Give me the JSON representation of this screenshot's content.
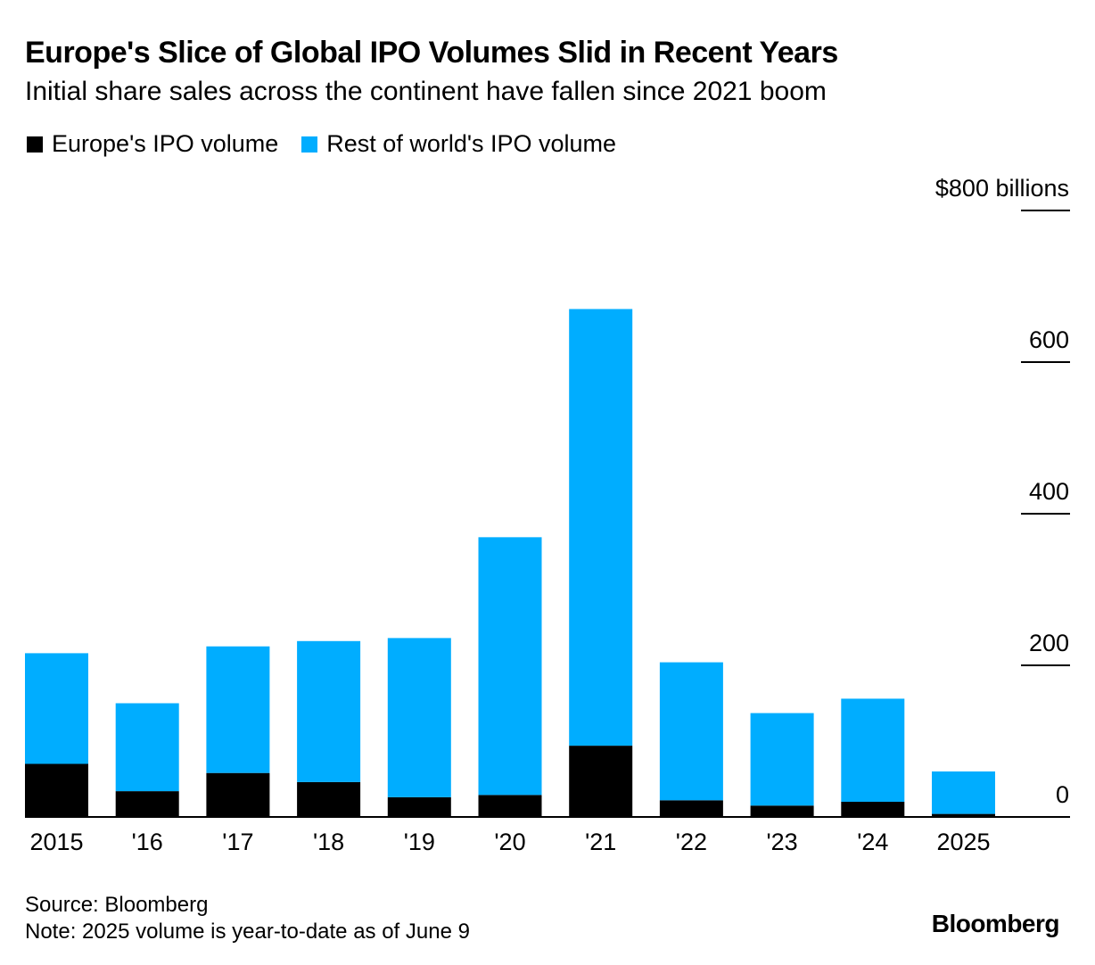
{
  "title": "Europe's Slice of Global IPO Volumes Slid in Recent Years",
  "subtitle": "Initial share sales across the continent have fallen since 2021 boom",
  "legend": [
    {
      "label": "Europe's IPO volume",
      "color": "#000000"
    },
    {
      "label": "Rest of world's IPO volume",
      "color": "#00adff"
    }
  ],
  "footer": {
    "source": "Source: Bloomberg",
    "note": "Note: 2025 volume is year-to-date as of June 9"
  },
  "brand": "Bloomberg",
  "chart_data": {
    "type": "bar",
    "stacked": true,
    "title": "Europe's Slice of Global IPO Volumes Slid in Recent Years",
    "subtitle": "Initial share sales across the continent have fallen since 2021 boom",
    "categories": [
      "2015",
      "'16",
      "'17",
      "'18",
      "'19",
      "'20",
      "'21",
      "'22",
      "'23",
      "'24",
      "2025"
    ],
    "series": [
      {
        "name": "Europe's IPO volume",
        "color": "#000000",
        "values": [
          70,
          34,
          58,
          46,
          26,
          29,
          94,
          22,
          15,
          20,
          4
        ]
      },
      {
        "name": "Rest of world's IPO volume",
        "color": "#00adff",
        "values": [
          146,
          116,
          167,
          186,
          210,
          340,
          576,
          182,
          122,
          136,
          56
        ]
      }
    ],
    "ylim": [
      0,
      800
    ],
    "yticks": [
      0,
      200,
      400,
      600,
      800
    ],
    "ytick_labels": [
      "0",
      "200",
      "400",
      "600",
      "$800 billions"
    ],
    "y_axis_position": "right",
    "grid": false,
    "legend_position": "top-left"
  }
}
